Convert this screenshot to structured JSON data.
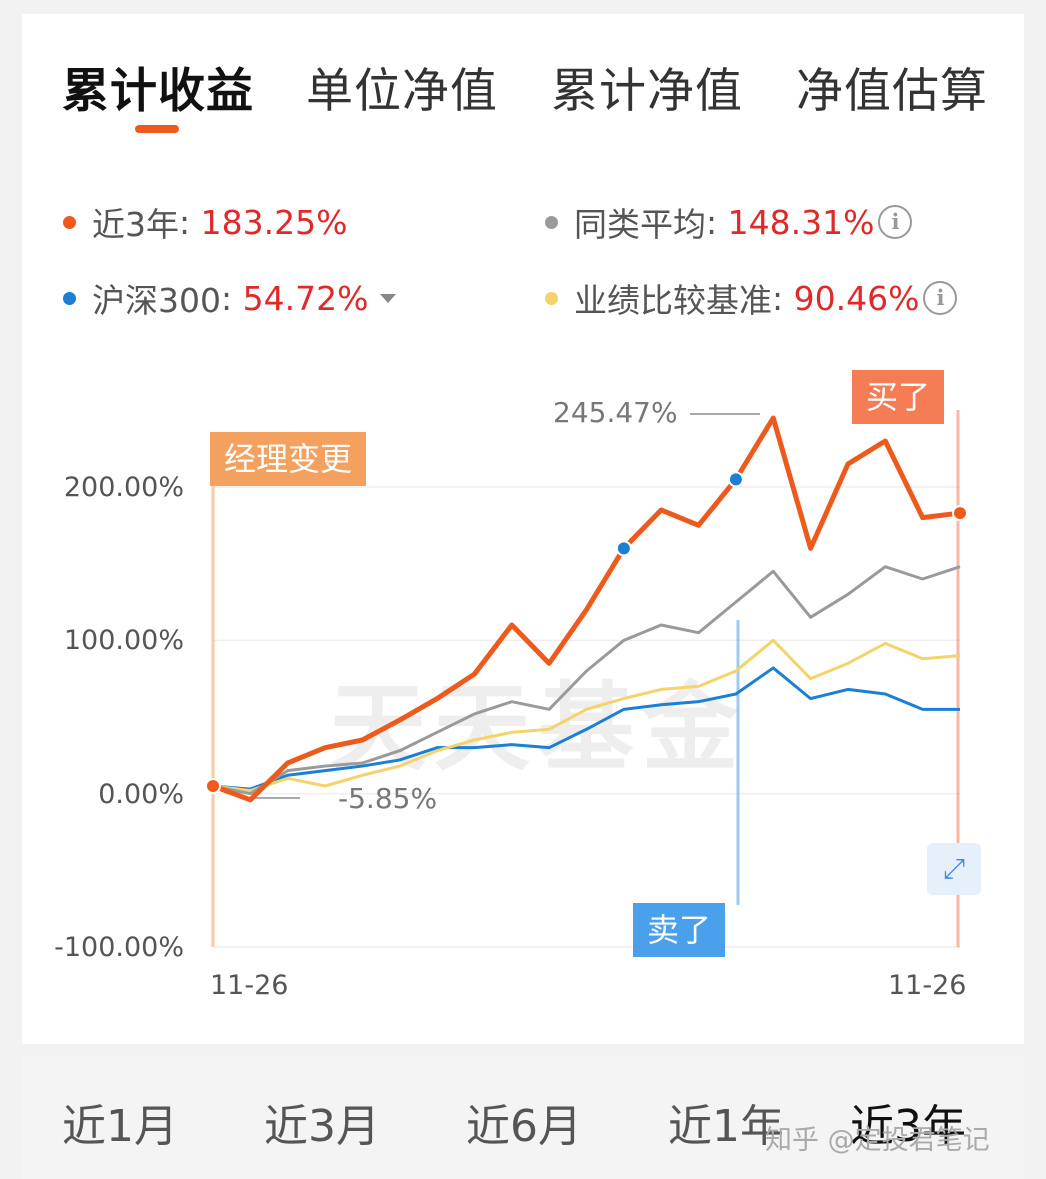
{
  "tabs": [
    {
      "label": "累计收益",
      "active": true
    },
    {
      "label": "单位净值",
      "active": false
    },
    {
      "label": "累计净值",
      "active": false
    },
    {
      "label": "净值估算",
      "active": false
    }
  ],
  "legend": [
    {
      "name": "近3年",
      "value": "183.25%",
      "color": "#ee5a1b"
    },
    {
      "name": "同类平均",
      "value": "148.31%",
      "color": "#9a9a9a",
      "info_icon": "info-icon"
    },
    {
      "name": "沪深300",
      "value": "54.72%",
      "color": "#1b7fd6",
      "dropdown_icon": "caret-down-icon"
    },
    {
      "name": "业绩比较基准",
      "value": "90.46%",
      "color": "#f5d36b",
      "info_icon": "info-icon"
    }
  ],
  "markers": {
    "manager_change": "经理变更",
    "buy": "买了",
    "sell": "卖了",
    "peak": "245.47%",
    "trough": "-5.85%"
  },
  "watermark": "天天基金",
  "expand_icon": "expand-icon",
  "ranges": [
    {
      "label": "近1月",
      "active": false
    },
    {
      "label": "近3月",
      "active": false
    },
    {
      "label": "近6月",
      "active": false
    },
    {
      "label": "近1年",
      "active": false
    },
    {
      "label": "近3年",
      "active": true
    }
  ],
  "site_watermark": "知乎 @定投君笔记",
  "chart_data": {
    "type": "line",
    "x_start_label": "11-26",
    "x_end_label": "11-26",
    "y_ticks": [
      "200.00%",
      "100.00%",
      "0.00%",
      "-100.00%"
    ],
    "ylim": [
      -100,
      200
    ],
    "x": [
      0,
      0.05,
      0.1,
      0.15,
      0.2,
      0.25,
      0.3,
      0.35,
      0.4,
      0.45,
      0.5,
      0.55,
      0.6,
      0.65,
      0.7,
      0.75,
      0.8,
      0.85,
      0.9,
      0.95,
      1
    ],
    "series": [
      {
        "name": "近3年",
        "color": "#ee5a1b",
        "values": [
          5,
          -4,
          20,
          30,
          35,
          48,
          62,
          78,
          110,
          85,
          120,
          160,
          185,
          175,
          205,
          245,
          160,
          215,
          230,
          180,
          183
        ]
      },
      {
        "name": "同类平均",
        "color": "#9a9a9a",
        "values": [
          5,
          0,
          15,
          18,
          20,
          28,
          40,
          52,
          60,
          55,
          80,
          100,
          110,
          105,
          125,
          145,
          115,
          130,
          148,
          140,
          148
        ]
      },
      {
        "name": "业绩比较基准",
        "color": "#f5d36b",
        "values": [
          5,
          2,
          10,
          5,
          12,
          18,
          28,
          35,
          40,
          42,
          55,
          62,
          68,
          70,
          80,
          100,
          75,
          85,
          98,
          88,
          90
        ]
      },
      {
        "name": "沪深300",
        "color": "#1b7fd6",
        "values": [
          5,
          3,
          12,
          15,
          18,
          22,
          30,
          30,
          32,
          30,
          42,
          55,
          58,
          60,
          65,
          82,
          62,
          68,
          65,
          55,
          55
        ]
      }
    ]
  }
}
